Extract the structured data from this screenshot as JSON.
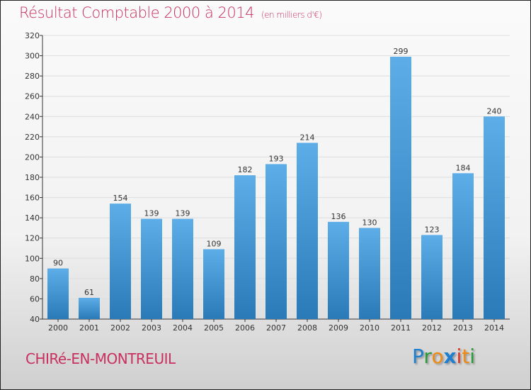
{
  "chart_data": {
    "type": "bar",
    "title": "Résultat Comptable 2000 à 2014",
    "subtitle": "(en milliers d'€)",
    "categories": [
      "2000",
      "2001",
      "2002",
      "2003",
      "2004",
      "2005",
      "2006",
      "2007",
      "2008",
      "2009",
      "2010",
      "2011",
      "2012",
      "2013",
      "2014"
    ],
    "values": [
      90,
      61,
      154,
      139,
      139,
      109,
      182,
      193,
      214,
      136,
      130,
      299,
      123,
      184,
      240
    ],
    "ylim": [
      40,
      320
    ],
    "yticks": [
      40,
      60,
      80,
      100,
      120,
      140,
      160,
      180,
      200,
      220,
      240,
      260,
      280,
      300,
      320
    ],
    "grid": true,
    "bar_color_top": "#5dade8",
    "bar_color_bottom": "#2a7ab8"
  },
  "footer": {
    "city": "CHIRé-EN-MONTREUIL",
    "logo": "Proxiti"
  }
}
